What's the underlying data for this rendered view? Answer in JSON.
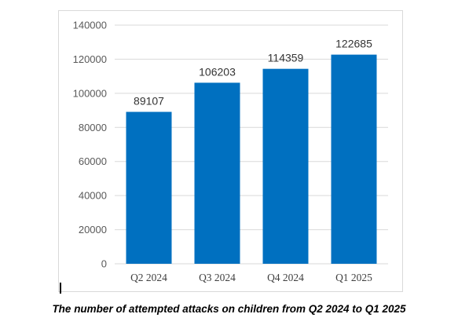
{
  "caption": "The number of attempted attacks on children from Q2 2024 to Q1 2025",
  "colors": {
    "bar": "#0070c0",
    "gridline": "#d9d9d9",
    "axis_text": "#595959"
  },
  "chart_data": {
    "type": "bar",
    "title": "",
    "xlabel": "",
    "ylabel": "",
    "categories": [
      "Q2 2024",
      "Q3 2024",
      "Q4 2024",
      "Q1 2025"
    ],
    "values": [
      89107,
      106203,
      114359,
      122685
    ],
    "data_labels": [
      "89107",
      "106203",
      "114359",
      "122685"
    ],
    "ylim": [
      0,
      140000
    ],
    "yticks": [
      "0",
      "20000",
      "40000",
      "60000",
      "80000",
      "100000",
      "120000",
      "140000"
    ],
    "grid": true,
    "legend": "none"
  }
}
